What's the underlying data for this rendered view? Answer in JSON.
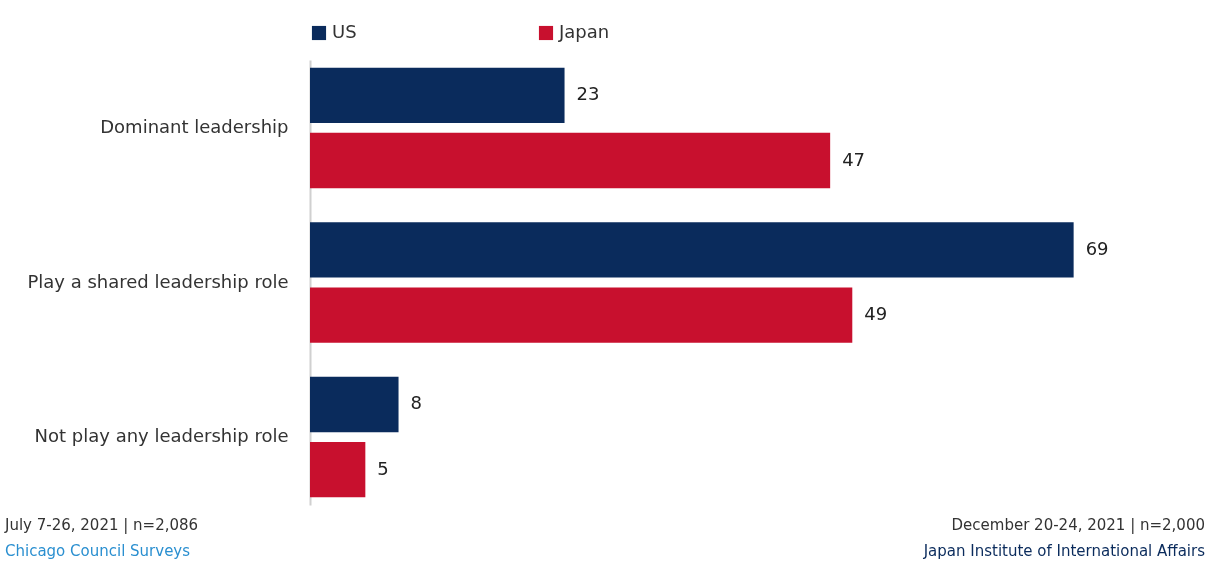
{
  "chart_data": {
    "type": "bar",
    "orientation": "horizontal",
    "categories": [
      "Dominant leadership",
      "Play a shared leadership role",
      "Not play any  leadership role"
    ],
    "series": [
      {
        "name": "US",
        "color": "#0a2b5c",
        "values": [
          23,
          69,
          8
        ]
      },
      {
        "name": "Japan",
        "color": "#c8102e",
        "values": [
          47,
          49,
          5
        ]
      }
    ],
    "data_labels": true,
    "legend": "top",
    "grid": false,
    "annotations": [
      "July 7-26, 2021 | n=2,086",
      "Chicago Council Surveys",
      "December 20-24, 2021 | n=2,000",
      "Japan Institute of International Affairs"
    ]
  }
}
